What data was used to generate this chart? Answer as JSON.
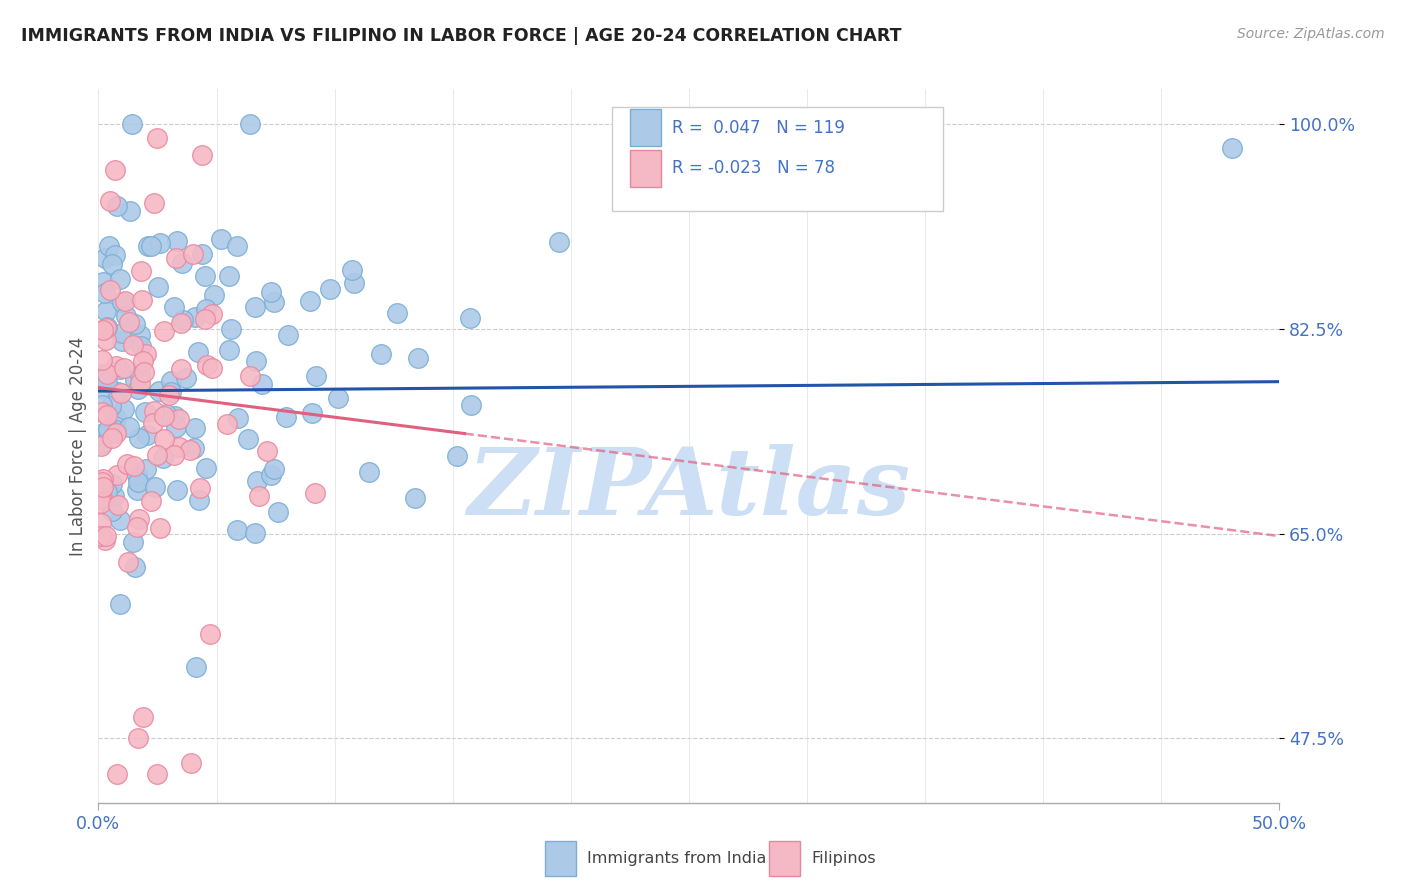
{
  "title": "IMMIGRANTS FROM INDIA VS FILIPINO IN LABOR FORCE | AGE 20-24 CORRELATION CHART",
  "source": "Source: ZipAtlas.com",
  "ylabel": "In Labor Force | Age 20-24",
  "xlim": [
    0.0,
    0.5
  ],
  "ylim": [
    0.42,
    1.03
  ],
  "yticks": [
    0.475,
    0.65,
    0.825,
    1.0
  ],
  "ytick_labels": [
    "47.5%",
    "65.0%",
    "82.5%",
    "100.0%"
  ],
  "legend_blue_r": "0.047",
  "legend_blue_n": "119",
  "legend_pink_r": "-0.023",
  "legend_pink_n": "78",
  "legend_label_blue": "Immigrants from India",
  "legend_label_pink": "Filipinos",
  "blue_color": "#adc9e8",
  "pink_color": "#f5b8c5",
  "blue_edge": "#7aaed4",
  "pink_edge": "#e888a0",
  "trend_blue": "#2255aa",
  "trend_pink": "#e06080",
  "axis_color": "#4472c4",
  "watermark_text": "ZIPAtlas",
  "watermark_color": "#ccdff5",
  "seed_blue": 42,
  "seed_pink": 17
}
